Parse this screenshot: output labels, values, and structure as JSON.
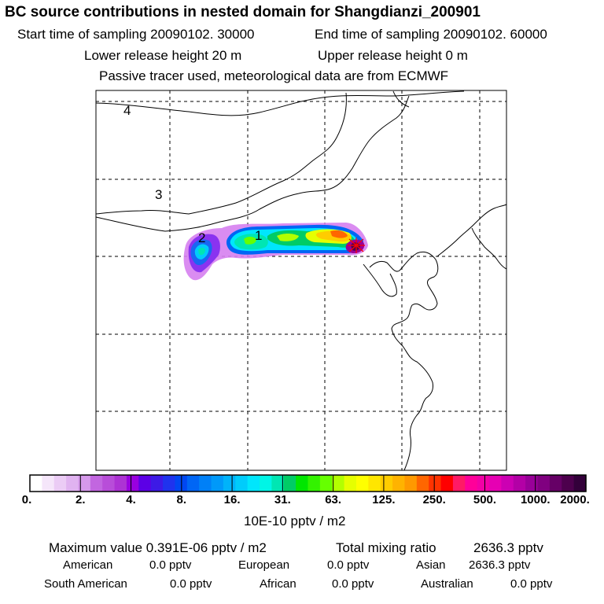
{
  "title": "BC  source contributions in nested domain for Shangdianzi_200901",
  "header": {
    "start_label": "Start time of sampling 20090102. 30000",
    "end_label": "End time of sampling 20090102. 60000",
    "lower_label": "Lower release height   20 m",
    "upper_label": "Upper release height    0 m",
    "tracer_label": "Passive tracer used, meteorological data are from ECMWF"
  },
  "map": {
    "region_labels": [
      "4",
      "3",
      "2",
      "1"
    ],
    "receptor_marker": "star-icon"
  },
  "colorbar": {
    "colors": [
      "#ffffff",
      "#f5e6fa",
      "#ebccf5",
      "#e0b3f0",
      "#d699eb",
      "#c266e0",
      "#b84dd9",
      "#ad33d4",
      "#9900e0",
      "#5c00e6",
      "#3d1ae6",
      "#1f33ee",
      "#0047f2",
      "#0066f5",
      "#0080f7",
      "#0099f9",
      "#00b3fa",
      "#00ccfb",
      "#00e6fc",
      "#00f5e6",
      "#00e6b3",
      "#00cc66",
      "#00e600",
      "#33f200",
      "#66ff00",
      "#b3ff00",
      "#e6ff00",
      "#ffff00",
      "#ffe600",
      "#ffcc00",
      "#ffb300",
      "#ff9900",
      "#ff6600",
      "#ff3300",
      "#ff0000",
      "#ff1a66",
      "#ff0099",
      "#f200a6",
      "#e600b3",
      "#cc00b3",
      "#b300a6",
      "#990099",
      "#800080",
      "#660066",
      "#4d004d",
      "#33003a"
    ],
    "ticks": [
      "0.",
      "2.",
      "4.",
      "8.",
      "16.",
      "31.",
      "63.",
      "125.",
      "250.",
      "500.",
      "1000.",
      "2000."
    ],
    "units": "10E-10 pptv / m2"
  },
  "summary": {
    "max_label": "Maximum value  0.391E-06 pptv / m2",
    "total_label": "Total mixing ratio",
    "total_value": "2636.3 pptv",
    "regions": [
      {
        "name": "American",
        "value": "0.0 pptv"
      },
      {
        "name": "European",
        "value": "0.0 pptv"
      },
      {
        "name": "Asian",
        "value": "2636.3 pptv"
      },
      {
        "name": "South American",
        "value": "0.0 pptv"
      },
      {
        "name": "African",
        "value": "0.0 pptv"
      },
      {
        "name": "Australian",
        "value": "0.0 pptv"
      }
    ]
  }
}
